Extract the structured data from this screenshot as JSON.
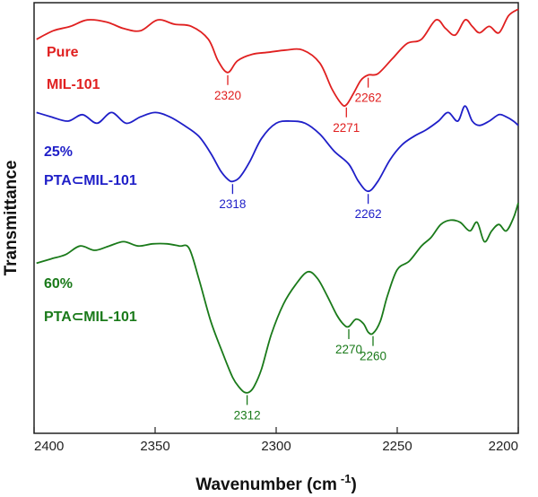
{
  "chart_data": {
    "type": "line",
    "xlabel": "Wavenumber (cm",
    "xlabel_sup": "-1",
    "xlabel_close": ")",
    "ylabel": "Transmittance",
    "xlim": [
      2400,
      2200
    ],
    "x_reversed": true,
    "xticks": [
      2400,
      2350,
      2300,
      2250,
      2200
    ],
    "ylim": [
      0,
      100
    ],
    "yticks_shown": false,
    "grid": false,
    "legend": "none",
    "series": [
      {
        "label_lines": [
          "Pure",
          "MIL-101"
        ],
        "color": "#e02020",
        "x": [
          2399,
          2392,
          2385,
          2378,
          2370,
          2363,
          2356,
          2349,
          2342,
          2335,
          2328,
          2324,
          2320,
          2316,
          2310,
          2303,
          2296,
          2289,
          2282,
          2277,
          2273,
          2271,
          2268,
          2265,
          2262,
          2258,
          2252,
          2246,
          2240,
          2234,
          2230,
          2226,
          2222,
          2219,
          2216,
          2212,
          2208,
          2204,
          2200
        ],
        "y": [
          91.5,
          93.5,
          94.5,
          96,
          95.5,
          94,
          93.5,
          96,
          95,
          94.5,
          91.5,
          86.5,
          83.8,
          86.5,
          88,
          88.5,
          89,
          89,
          86,
          80,
          76.5,
          76.3,
          79,
          82,
          83.2,
          83.5,
          87,
          90.5,
          91.5,
          96,
          94,
          92.5,
          96,
          94.5,
          93,
          94.5,
          93,
          97,
          98.5
        ],
        "peaks": [
          {
            "x": 2320,
            "y": 83.8,
            "label": "2320"
          },
          {
            "x": 2271,
            "y": 76.3,
            "label": "2271"
          },
          {
            "x": 2262,
            "y": 83.2,
            "label": "2262"
          }
        ]
      },
      {
        "label_lines": [
          "25%",
          "PTA⊂MIL-101"
        ],
        "color": "#1f1fc8",
        "x": [
          2399,
          2393,
          2386,
          2380,
          2374,
          2368,
          2362,
          2356,
          2350,
          2344,
          2338,
          2332,
          2327,
          2323,
          2320,
          2318,
          2315,
          2311,
          2306,
          2300,
          2294,
          2288,
          2282,
          2276,
          2270,
          2266,
          2262,
          2258,
          2253,
          2248,
          2243,
          2238,
          2233,
          2229,
          2225,
          2222,
          2219,
          2216,
          2212,
          2208,
          2205,
          2202,
          2200
        ],
        "y": [
          74.5,
          73.5,
          72.5,
          74,
          72,
          74.5,
          72,
          73.5,
          74.5,
          73.5,
          71.5,
          69,
          65,
          61,
          59,
          58.5,
          59.5,
          63,
          68.5,
          72,
          72.5,
          72,
          69.5,
          65.5,
          62.5,
          58.5,
          56.2,
          58.5,
          63.5,
          67,
          69,
          70.5,
          72.5,
          74.5,
          72.5,
          76,
          72.5,
          71.5,
          72.5,
          74,
          73.5,
          72.5,
          71.5
        ],
        "peaks": [
          {
            "x": 2318,
            "y": 58.5,
            "label": "2318"
          },
          {
            "x": 2262,
            "y": 56.2,
            "label": "2262"
          }
        ]
      },
      {
        "label_lines": [
          "60%",
          "PTA⊂MIL-101"
        ],
        "color": "#1a7a1a",
        "x": [
          2399,
          2393,
          2387,
          2381,
          2375,
          2369,
          2363,
          2357,
          2351,
          2345,
          2340,
          2336,
          2332,
          2327,
          2322,
          2318,
          2315,
          2313,
          2311,
          2309,
          2306,
          2302,
          2297,
          2292,
          2287,
          2283,
          2279,
          2275,
          2272,
          2270,
          2267,
          2264,
          2262,
          2260,
          2257,
          2254,
          2250,
          2245,
          2240,
          2236,
          2232,
          2228,
          2224,
          2220,
          2217,
          2214,
          2211,
          2208,
          2205,
          2202,
          2200
        ],
        "y": [
          39.5,
          40.5,
          41.5,
          43.5,
          42.5,
          43.5,
          44.5,
          43.5,
          44,
          44,
          43.5,
          43,
          36,
          26,
          18.5,
          13,
          10.5,
          9.5,
          9.6,
          11,
          15,
          23,
          30,
          34.5,
          37.5,
          36,
          32,
          27.5,
          25.2,
          24.8,
          26.5,
          25.5,
          23.5,
          23.2,
          26,
          32,
          38,
          40,
          43.5,
          45.5,
          48.5,
          49.5,
          49,
          47,
          49,
          44.5,
          47,
          48.5,
          47,
          50,
          53.5
        ],
        "peaks": [
          {
            "x": 2312,
            "y": 9.5,
            "label": "2312"
          },
          {
            "x": 2270,
            "y": 24.8,
            "label": "2270"
          },
          {
            "x": 2260,
            "y": 23.2,
            "label": "2260"
          }
        ]
      }
    ]
  }
}
